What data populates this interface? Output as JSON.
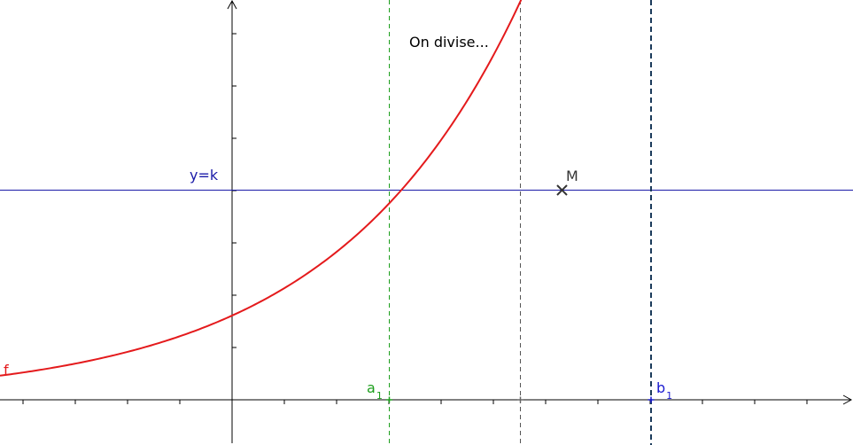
{
  "title_text": "On divise...",
  "curve": {
    "label": "f",
    "color": "#e41a1c"
  },
  "horizontal_line": {
    "label": "y=k",
    "color": "#1a1aa8"
  },
  "point_m": {
    "label": "M",
    "color": "#333333"
  },
  "point_a": {
    "letter": "a",
    "index": "1",
    "color": "#1c9e1c"
  },
  "point_b": {
    "letter": "b",
    "index": "1",
    "color": "#1a1ad0"
  },
  "midline": {
    "color": "#555555"
  },
  "axis_color": "#000000"
}
